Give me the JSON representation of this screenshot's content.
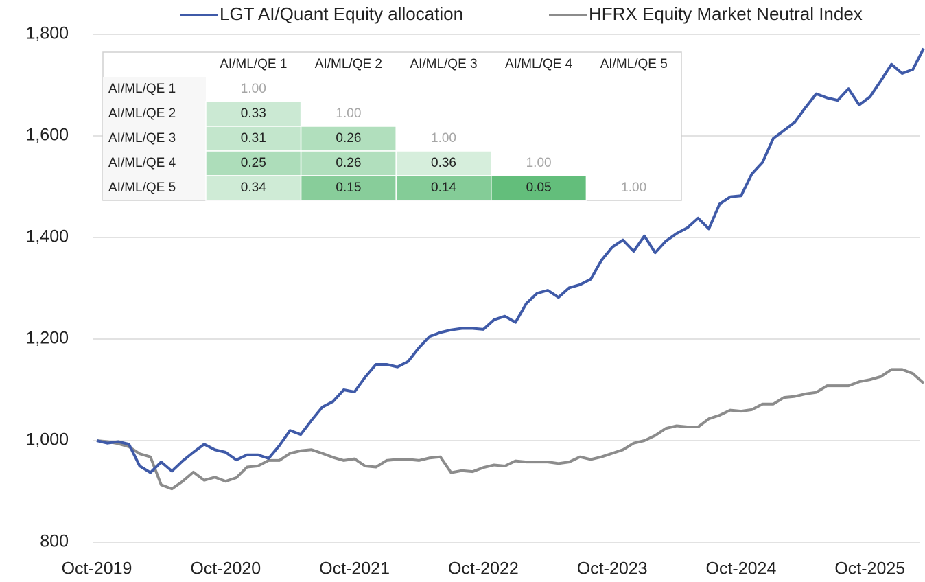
{
  "chart_data": {
    "type": "line",
    "categories": [
      "Oct-2019",
      null,
      null,
      null,
      null,
      null,
      null,
      null,
      null,
      null,
      null,
      null,
      "Oct-2020",
      null,
      null,
      null,
      null,
      null,
      null,
      null,
      null,
      null,
      null,
      null,
      "Oct-2021",
      null,
      null,
      null,
      null,
      null,
      null,
      null,
      null,
      null,
      null,
      null,
      "Oct-2022",
      null,
      null,
      null,
      null,
      null,
      null,
      null,
      null,
      null,
      null,
      null,
      "Oct-2023",
      null,
      null,
      null,
      null,
      null,
      null,
      null,
      null,
      null,
      null,
      null,
      "Oct-2024",
      null,
      null,
      null,
      null,
      null,
      null,
      null,
      null,
      null,
      null,
      null,
      "Oct-2025",
      null,
      null,
      null,
      null,
      null
    ],
    "series": [
      {
        "name": "LGT AI/Quant Equity allocation",
        "color": "#3f5aa8",
        "values": [
          1000,
          995,
          998,
          993,
          950,
          937,
          958,
          940,
          960,
          977,
          993,
          982,
          977,
          962,
          972,
          972,
          965,
          990,
          1020,
          1012,
          1040,
          1066,
          1077,
          1100,
          1096,
          1125,
          1150,
          1150,
          1145,
          1156,
          1183,
          1205,
          1213,
          1218,
          1221,
          1221,
          1219,
          1238,
          1245,
          1233,
          1270,
          1290,
          1296,
          1282,
          1301,
          1307,
          1318,
          1355,
          1381,
          1395,
          1373,
          1403,
          1370,
          1393,
          1408,
          1419,
          1438,
          1417,
          1466,
          1480,
          1482,
          1525,
          1548,
          1595,
          1611,
          1627,
          1656,
          1683,
          1675,
          1670,
          1693,
          1661,
          1677,
          1708,
          1741,
          1723,
          1731,
          1772
        ]
      },
      {
        "name": "HFRX Equity Market Neutral Index",
        "color": "#8c8c8c",
        "values": [
          1000,
          998,
          994,
          988,
          974,
          968,
          913,
          905,
          920,
          938,
          922,
          928,
          920,
          927,
          948,
          950,
          961,
          961,
          975,
          980,
          982,
          975,
          967,
          961,
          964,
          950,
          948,
          961,
          963,
          963,
          961,
          966,
          968,
          937,
          941,
          939,
          947,
          952,
          950,
          960,
          958,
          958,
          958,
          955,
          958,
          968,
          963,
          968,
          975,
          982,
          995,
          1000,
          1010,
          1024,
          1029,
          1027,
          1027,
          1043,
          1050,
          1060,
          1058,
          1061,
          1072,
          1072,
          1085,
          1087,
          1092,
          1095,
          1108,
          1108,
          1108,
          1116,
          1120,
          1126,
          1140,
          1140,
          1132,
          1113
        ]
      }
    ],
    "ylim": [
      800,
      1800
    ],
    "yticks": [
      {
        "value": 800,
        "label": "800"
      },
      {
        "value": 1000,
        "label": "1,000"
      },
      {
        "value": 1200,
        "label": "1,200"
      },
      {
        "value": 1400,
        "label": "1,400"
      },
      {
        "value": 1600,
        "label": "1,600"
      },
      {
        "value": 1800,
        "label": "1,800"
      }
    ],
    "grid": true,
    "legend": "top"
  },
  "table": {
    "columns": [
      "AI/ML/QE 1",
      "AI/ML/QE 2",
      "AI/ML/QE 3",
      "AI/ML/QE 4",
      "AI/ML/QE 5"
    ],
    "rows": [
      {
        "label": "AI/ML/QE 1",
        "cells": [
          "1.00"
        ]
      },
      {
        "label": "AI/ML/QE 2",
        "cells": [
          "0.33",
          "1.00"
        ]
      },
      {
        "label": "AI/ML/QE 3",
        "cells": [
          "0.31",
          "0.26",
          "1.00"
        ]
      },
      {
        "label": "AI/ML/QE 4",
        "cells": [
          "0.25",
          "0.26",
          "0.36",
          "1.00"
        ]
      },
      {
        "label": "AI/ML/QE 5",
        "cells": [
          "0.34",
          "0.15",
          "0.14",
          "0.05",
          "1.00"
        ]
      }
    ]
  }
}
